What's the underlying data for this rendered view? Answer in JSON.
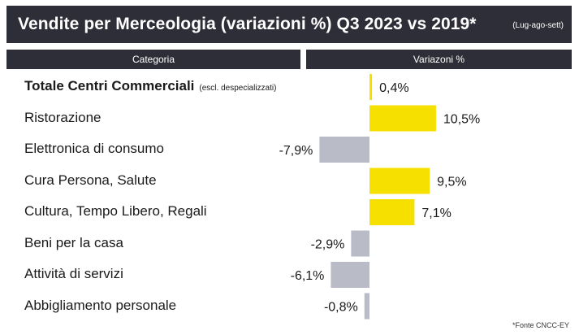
{
  "title": "Vendite per Merceologia (variazioni %) Q3 2023 vs 2019*",
  "title_note": "(Lug-ago-sett)",
  "headers": {
    "category": "Categoria",
    "value": "Variazoni %"
  },
  "footnote": "*Fonte CNCC-EY",
  "colors": {
    "positive": "#f5e000",
    "negative": "#b9bbc6",
    "header_bg": "#2e2e38"
  },
  "chart_data": {
    "type": "bar",
    "orientation": "horizontal",
    "categories": [
      "Totale Centri Commerciali",
      "Ristorazione",
      "Elettronica di consumo",
      "Cura Persona, Salute",
      "Cultura, Tempo Libero, Regali",
      "Beni per la casa",
      "Attività di servizi",
      "Abbigliamento personale"
    ],
    "category_notes": [
      "(escl. despecializzati)",
      "",
      "",
      "",
      "",
      "",
      "",
      ""
    ],
    "values": [
      0.4,
      10.5,
      -7.9,
      9.5,
      7.1,
      -2.9,
      -6.1,
      -0.8
    ],
    "value_labels": [
      "0,4%",
      "10,5%",
      "-7,9%",
      "9,5%",
      "7,1%",
      "-2,9%",
      "-6,1%",
      "-0,8%"
    ],
    "title": "Vendite per Merceologia (variazioni %) Q3 2023 vs 2019*",
    "grid": false,
    "legend": "none"
  }
}
